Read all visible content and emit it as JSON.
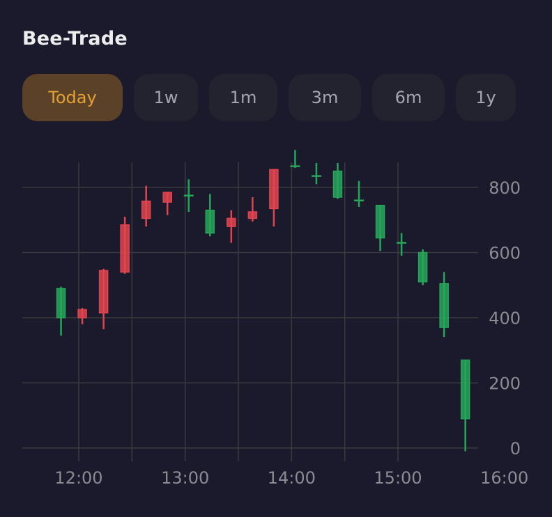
{
  "app": {
    "title": "Bee-Trade"
  },
  "tabs": [
    {
      "label": "Today",
      "active": true
    },
    {
      "label": "1w",
      "active": false
    },
    {
      "label": "1m",
      "active": false
    },
    {
      "label": "3m",
      "active": false
    },
    {
      "label": "6m",
      "active": false
    },
    {
      "label": "1y",
      "active": false
    }
  ],
  "colors": {
    "up": "#27a65a",
    "down": "#e0454f",
    "accent": "#e4a235",
    "background": "#1b1a2c"
  },
  "chart_data": {
    "type": "candlestick",
    "x_ticks": [
      "12:00",
      "13:00",
      "14:00",
      "15:00",
      "16:00"
    ],
    "y_ticks": [
      "0",
      "200",
      "400",
      "600",
      "800"
    ],
    "ylim": [
      0,
      900
    ],
    "xlim": [
      "11:25",
      "16:00"
    ],
    "grid": true,
    "y_axis_side": "right",
    "candles": [
      {
        "time": "11:50",
        "open": 400,
        "close": 490,
        "high": 495,
        "low": 345
      },
      {
        "time": "12:02",
        "open": 425,
        "close": 400,
        "high": 430,
        "low": 380
      },
      {
        "time": "12:14",
        "open": 545,
        "close": 415,
        "high": 550,
        "low": 365
      },
      {
        "time": "12:26",
        "open": 685,
        "close": 540,
        "high": 710,
        "low": 535
      },
      {
        "time": "12:38",
        "open": 758,
        "close": 705,
        "high": 805,
        "low": 680
      },
      {
        "time": "12:50",
        "open": 785,
        "close": 755,
        "high": 785,
        "low": 715
      },
      {
        "time": "13:02",
        "open": 775,
        "close": 775,
        "high": 825,
        "low": 725
      },
      {
        "time": "13:14",
        "open": 660,
        "close": 730,
        "high": 780,
        "low": 650
      },
      {
        "time": "13:26",
        "open": 705,
        "close": 680,
        "high": 730,
        "low": 630
      },
      {
        "time": "13:38",
        "open": 725,
        "close": 705,
        "high": 770,
        "low": 695
      },
      {
        "time": "13:50",
        "open": 855,
        "close": 735,
        "high": 855,
        "low": 680
      },
      {
        "time": "14:02",
        "open": 865,
        "close": 865,
        "high": 915,
        "low": 860
      },
      {
        "time": "14:14",
        "open": 835,
        "close": 835,
        "high": 875,
        "low": 810
      },
      {
        "time": "14:26",
        "open": 770,
        "close": 850,
        "high": 875,
        "low": 765
      },
      {
        "time": "14:38",
        "open": 760,
        "close": 760,
        "high": 820,
        "low": 740
      },
      {
        "time": "14:50",
        "open": 645,
        "close": 745,
        "high": 745,
        "low": 605
      },
      {
        "time": "15:02",
        "open": 630,
        "close": 630,
        "high": 660,
        "low": 590
      },
      {
        "time": "15:14",
        "open": 510,
        "close": 600,
        "high": 610,
        "low": 500
      },
      {
        "time": "15:26",
        "open": 370,
        "close": 505,
        "high": 540,
        "low": 340
      },
      {
        "time": "15:38",
        "open": 90,
        "close": 270,
        "high": 270,
        "low": -10
      }
    ]
  }
}
